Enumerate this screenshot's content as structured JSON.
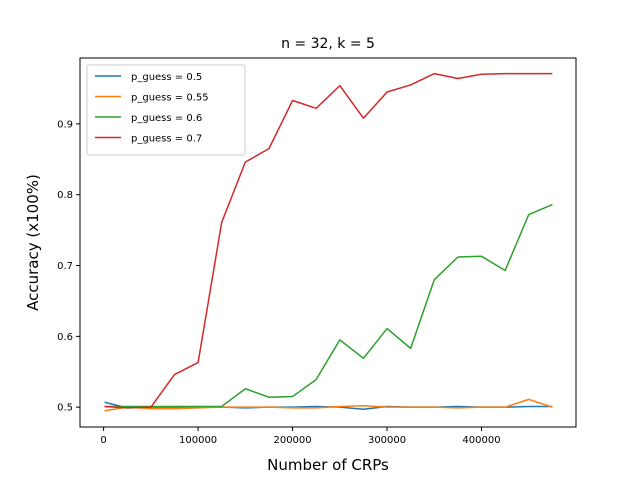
{
  "chart_data": {
    "type": "line",
    "title": "n = 32, k = 5",
    "xlabel": "Number of CRPs",
    "ylabel": "Accuracy (x100%)",
    "xlim": [
      -25000,
      500000
    ],
    "ylim": [
      0.472,
      0.993
    ],
    "xticks": [
      0,
      100000,
      200000,
      300000,
      400000
    ],
    "yticks": [
      0.5,
      0.6,
      0.7,
      0.8,
      0.9
    ],
    "legend_position": "top-left",
    "x": [
      1000,
      25000,
      50000,
      75000,
      100000,
      125000,
      150000,
      175000,
      200000,
      225000,
      250000,
      275000,
      300000,
      325000,
      350000,
      375000,
      400000,
      425000,
      450000,
      475000
    ],
    "series": [
      {
        "name": "p_guess = 0.5",
        "color": "#1f77b4",
        "values": [
          0.507,
          0.499,
          0.5,
          0.5,
          0.5,
          0.5,
          0.499,
          0.5,
          0.5,
          0.501,
          0.5,
          0.497,
          0.501,
          0.5,
          0.5,
          0.501,
          0.5,
          0.5,
          0.501,
          0.501
        ]
      },
      {
        "name": "p_guess = 0.55",
        "color": "#ff7f0e",
        "values": [
          0.495,
          0.5,
          0.498,
          0.498,
          0.499,
          0.5,
          0.5,
          0.5,
          0.499,
          0.499,
          0.501,
          0.502,
          0.5,
          0.5,
          0.5,
          0.499,
          0.5,
          0.5,
          0.511,
          0.5
        ]
      },
      {
        "name": "p_guess = 0.6",
        "color": "#2ca02c",
        "values": [
          0.501,
          0.501,
          0.501,
          0.501,
          0.501,
          0.501,
          0.526,
          0.514,
          0.515,
          0.539,
          0.595,
          0.569,
          0.611,
          0.583,
          0.68,
          0.712,
          0.713,
          0.693,
          0.772,
          0.786
        ]
      },
      {
        "name": "p_guess = 0.7",
        "color": "#d62728",
        "values": [
          0.501,
          0.499,
          0.5,
          0.546,
          0.563,
          0.761,
          0.846,
          0.865,
          0.933,
          0.922,
          0.954,
          0.908,
          0.945,
          0.955,
          0.971,
          0.964,
          0.97,
          0.971,
          0.971,
          0.971
        ]
      }
    ]
  }
}
